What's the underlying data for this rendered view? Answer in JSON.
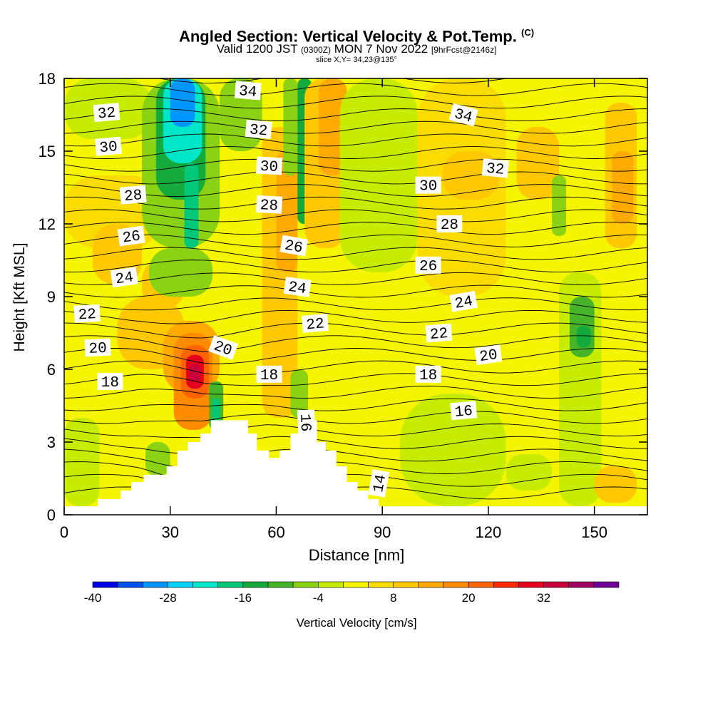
{
  "title": {
    "main": "Angled Section: Vertical Velocity & Pot.Temp.",
    "copyright": "(C)",
    "valid_prefix": "Valid 1200 JST",
    "utc": "(0300Z)",
    "valid_date": "MON 7 Nov 2022",
    "forecast": "[9hrFcst@2146z]",
    "slice": "slice X,Y= 34,23@135°"
  },
  "chart_data": {
    "type": "heatmap",
    "xlabel": "Distance [nm]",
    "ylabel": "Height [Kft MSL]",
    "xlim": [
      0,
      165
    ],
    "ylim": [
      0,
      18
    ],
    "x_ticks": [
      "0",
      "30",
      "60",
      "90",
      "120",
      "150"
    ],
    "y_ticks": [
      "0",
      "3",
      "6",
      "9",
      "12",
      "15",
      "18"
    ],
    "field": "Vertical Velocity",
    "colorbar": {
      "label": "Vertical Velocity [cm/s]",
      "tick_labels": [
        "-40",
        "-28",
        "-16",
        "-4",
        "8",
        "20",
        "32"
      ],
      "levels": [
        -40,
        -36,
        -32,
        -28,
        -24,
        -20,
        -16,
        -12,
        -8,
        -4,
        0,
        4,
        8,
        12,
        16,
        20,
        24,
        28,
        32,
        36,
        40
      ],
      "colors": [
        "#0000e6",
        "#0050f0",
        "#0096ff",
        "#00d2ff",
        "#00e6c8",
        "#00c878",
        "#14aa3c",
        "#46b428",
        "#8cd214",
        "#c8ec00",
        "#f5f500",
        "#fadc00",
        "#ffc800",
        "#ffaa00",
        "#ff8c00",
        "#ff6400",
        "#ff2800",
        "#e6001e",
        "#c8003c",
        "#a00064",
        "#6e0096"
      ]
    },
    "terrain_profile": [
      [
        0,
        0.35
      ],
      [
        9.5,
        0.35
      ],
      [
        9.5,
        0.65
      ],
      [
        16,
        0.65
      ],
      [
        16,
        1.0
      ],
      [
        19,
        1.0
      ],
      [
        19,
        1.35
      ],
      [
        22.5,
        1.35
      ],
      [
        22.5,
        1.65
      ],
      [
        25.5,
        1.65
      ],
      [
        25.5,
        1.65
      ],
      [
        29,
        1.65
      ],
      [
        29,
        2.0
      ],
      [
        32,
        2.0
      ],
      [
        32,
        2.65
      ],
      [
        35,
        2.65
      ],
      [
        35,
        3.0
      ],
      [
        38.5,
        3.0
      ],
      [
        38.5,
        3.35
      ],
      [
        41.5,
        3.35
      ],
      [
        41.5,
        3.9
      ],
      [
        52,
        3.9
      ],
      [
        52,
        3.35
      ],
      [
        54.5,
        3.35
      ],
      [
        54.5,
        2.65
      ],
      [
        58,
        2.65
      ],
      [
        58,
        2.35
      ],
      [
        61,
        2.35
      ],
      [
        61,
        2.65
      ],
      [
        64,
        2.65
      ],
      [
        64,
        3.35
      ],
      [
        67,
        3.35
      ],
      [
        67,
        3.9
      ],
      [
        71.5,
        3.9
      ],
      [
        71.5,
        3.0
      ],
      [
        74,
        3.0
      ],
      [
        74,
        2.65
      ],
      [
        77,
        2.65
      ],
      [
        77,
        2.0
      ],
      [
        80,
        2.0
      ],
      [
        80,
        1.35
      ],
      [
        83,
        1.35
      ],
      [
        83,
        1.0
      ],
      [
        86,
        1.0
      ],
      [
        86,
        0.65
      ],
      [
        89,
        0.65
      ],
      [
        89,
        0.35
      ],
      [
        165,
        0.35
      ]
    ],
    "vertical_velocity_cells": [
      {
        "x0": 0,
        "x1": 165,
        "y0": 0,
        "y1": 18,
        "value": 2
      },
      {
        "x0": 0,
        "x1": 25,
        "y0": 0.35,
        "y1": 18,
        "value": 0
      },
      {
        "x0": 0,
        "x1": 10,
        "y0": 0.35,
        "y1": 4,
        "value": -4
      },
      {
        "x0": 0,
        "x1": 28,
        "y0": 11,
        "y1": 14,
        "value": 4
      },
      {
        "x0": 8,
        "x1": 22,
        "y0": 9.5,
        "y1": 12,
        "value": 8
      },
      {
        "x0": 0,
        "x1": 25,
        "y0": 15.5,
        "y1": 18,
        "value": -4
      },
      {
        "x0": 15,
        "x1": 34,
        "y0": 6,
        "y1": 9,
        "value": 8
      },
      {
        "x0": 22,
        "x1": 34,
        "y0": 8.5,
        "y1": 10.5,
        "value": 10
      },
      {
        "x0": 23,
        "x1": 30,
        "y0": 1.6,
        "y1": 3,
        "value": -8
      },
      {
        "x0": 28,
        "x1": 44,
        "y0": 5,
        "y1": 8,
        "value": 12
      },
      {
        "x0": 31,
        "x1": 42,
        "y0": 3.5,
        "y1": 7.5,
        "value": 16
      },
      {
        "x0": 33,
        "x1": 41,
        "y0": 4.8,
        "y1": 7,
        "value": 22
      },
      {
        "x0": 34.5,
        "x1": 39.5,
        "y0": 5.2,
        "y1": 6.6,
        "value": 28
      },
      {
        "x0": 35.5,
        "x1": 38.5,
        "y0": 5.5,
        "y1": 6.2,
        "value": 32
      },
      {
        "x0": 22,
        "x1": 44,
        "y0": 11,
        "y1": 18,
        "value": -8
      },
      {
        "x0": 24,
        "x1": 42,
        "y0": 9,
        "y1": 11,
        "value": -8
      },
      {
        "x0": 26,
        "x1": 40,
        "y0": 13,
        "y1": 18,
        "value": -16
      },
      {
        "x0": 28,
        "x1": 39,
        "y0": 14.5,
        "y1": 18,
        "value": -24
      },
      {
        "x0": 30,
        "x1": 37,
        "y0": 16,
        "y1": 18,
        "value": -32
      },
      {
        "x0": 34,
        "x1": 38,
        "y0": 11,
        "y1": 14.5,
        "value": -20
      },
      {
        "x0": 41,
        "x1": 45,
        "y0": 3.5,
        "y1": 5.5,
        "value": -12
      },
      {
        "x0": 42,
        "x1": 44,
        "y0": 3.9,
        "y1": 4.8,
        "value": -20
      },
      {
        "x0": 44,
        "x1": 56,
        "y0": 15,
        "y1": 18,
        "value": -8
      },
      {
        "x0": 56,
        "x1": 66,
        "y0": 4,
        "y1": 16,
        "value": 8
      },
      {
        "x0": 60,
        "x1": 66,
        "y0": 10,
        "y1": 15,
        "value": 12
      },
      {
        "x0": 62,
        "x1": 66,
        "y0": 14,
        "y1": 18,
        "value": -8
      },
      {
        "x0": 66,
        "x1": 70,
        "y0": 12,
        "y1": 18,
        "value": -16
      },
      {
        "x0": 64,
        "x1": 69,
        "y0": 4,
        "y1": 6,
        "value": -8
      },
      {
        "x0": 68,
        "x1": 80,
        "y0": 11,
        "y1": 18,
        "value": 8
      },
      {
        "x0": 72,
        "x1": 80,
        "y0": 14,
        "y1": 18,
        "value": 12
      },
      {
        "x0": 78,
        "x1": 100,
        "y0": 10,
        "y1": 18,
        "value": -4
      },
      {
        "x0": 90,
        "x1": 125,
        "y0": 5,
        "y1": 9,
        "value": 0
      },
      {
        "x0": 95,
        "x1": 125,
        "y0": 0.35,
        "y1": 5,
        "value": -4
      },
      {
        "x0": 100,
        "x1": 125,
        "y0": 9,
        "y1": 18,
        "value": 4
      },
      {
        "x0": 107,
        "x1": 123,
        "y0": 13,
        "y1": 15,
        "value": 8
      },
      {
        "x0": 125,
        "x1": 145,
        "y0": 0.35,
        "y1": 18,
        "value": 2
      },
      {
        "x0": 128,
        "x1": 140,
        "y0": 13,
        "y1": 16,
        "value": 8
      },
      {
        "x0": 125,
        "x1": 138,
        "y0": 1,
        "y1": 2.5,
        "value": -4
      },
      {
        "x0": 138,
        "x1": 142,
        "y0": 11.5,
        "y1": 14,
        "value": -8
      },
      {
        "x0": 140,
        "x1": 152,
        "y0": 0.35,
        "y1": 10,
        "value": -4
      },
      {
        "x0": 143,
        "x1": 150,
        "y0": 6.5,
        "y1": 9,
        "value": -12
      },
      {
        "x0": 145,
        "x1": 149,
        "y0": 6.9,
        "y1": 7.8,
        "value": -16
      },
      {
        "x0": 152,
        "x1": 165,
        "y0": 0.35,
        "y1": 18,
        "value": 2
      },
      {
        "x0": 153,
        "x1": 162,
        "y0": 11,
        "y1": 17,
        "value": 8
      },
      {
        "x0": 155,
        "x1": 161,
        "y0": 12,
        "y1": 15,
        "value": 12
      },
      {
        "x0": 150,
        "x1": 162,
        "y0": 0.5,
        "y1": 2,
        "value": 8
      }
    ],
    "potential_temperature_contours": {
      "unit": "C",
      "labels": [
        {
          "text": "32",
          "x": 12,
          "y": 16.6,
          "angle": -5
        },
        {
          "text": "30",
          "x": 12.5,
          "y": 15.2,
          "angle": -5
        },
        {
          "text": "28",
          "x": 19.5,
          "y": 13.2,
          "angle": -5
        },
        {
          "text": "26",
          "x": 19,
          "y": 11.5,
          "angle": -8
        },
        {
          "text": "24",
          "x": 17,
          "y": 9.8,
          "angle": -8
        },
        {
          "text": "22",
          "x": 6.5,
          "y": 8.3,
          "angle": -3
        },
        {
          "text": "20",
          "x": 9.5,
          "y": 6.9,
          "angle": -3
        },
        {
          "text": "18",
          "x": 13,
          "y": 5.5,
          "angle": 0
        },
        {
          "text": "34",
          "x": 52,
          "y": 17.5,
          "angle": 5
        },
        {
          "text": "32",
          "x": 55,
          "y": 15.9,
          "angle": 5
        },
        {
          "text": "30",
          "x": 58,
          "y": 14.4,
          "angle": 3
        },
        {
          "text": "28",
          "x": 58,
          "y": 12.8,
          "angle": 3
        },
        {
          "text": "26",
          "x": 65,
          "y": 11.1,
          "angle": 10
        },
        {
          "text": "24",
          "x": 66,
          "y": 9.4,
          "angle": 8
        },
        {
          "text": "22",
          "x": 71,
          "y": 7.9,
          "angle": -5
        },
        {
          "text": "20",
          "x": 45,
          "y": 6.9,
          "angle": 20
        },
        {
          "text": "18",
          "x": 58,
          "y": 5.8,
          "angle": 0
        },
        {
          "text": "16",
          "x": 68.5,
          "y": 3.8,
          "angle": 88
        },
        {
          "text": "14",
          "x": 89,
          "y": 1.3,
          "angle": -80
        },
        {
          "text": "34",
          "x": 113,
          "y": 16.5,
          "angle": 15
        },
        {
          "text": "32",
          "x": 122,
          "y": 14.3,
          "angle": 5
        },
        {
          "text": "30",
          "x": 103,
          "y": 13.6,
          "angle": 0
        },
        {
          "text": "28",
          "x": 109,
          "y": 12.0,
          "angle": 0
        },
        {
          "text": "26",
          "x": 103,
          "y": 10.3,
          "angle": 0
        },
        {
          "text": "24",
          "x": 113,
          "y": 8.8,
          "angle": -10
        },
        {
          "text": "22",
          "x": 106,
          "y": 7.5,
          "angle": -5
        },
        {
          "text": "20",
          "x": 120,
          "y": 6.6,
          "angle": -8
        },
        {
          "text": "18",
          "x": 103,
          "y": 5.8,
          "angle": 0
        },
        {
          "text": "16",
          "x": 113,
          "y": 4.3,
          "angle": -5
        }
      ]
    }
  }
}
